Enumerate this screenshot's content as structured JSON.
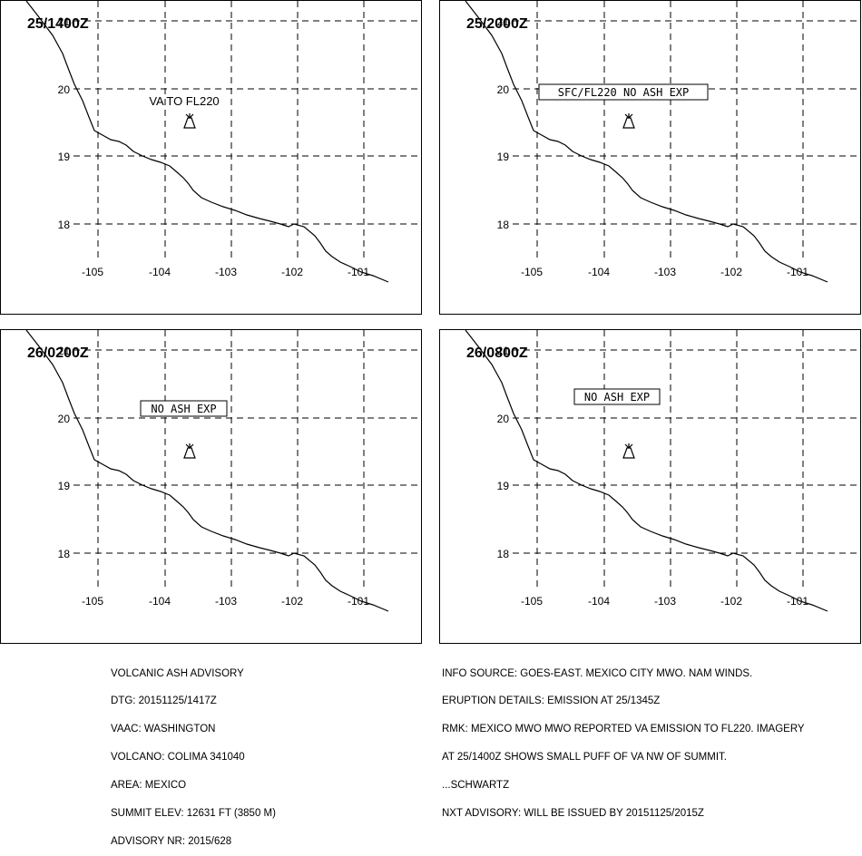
{
  "panels": [
    {
      "time": "25/1400Z",
      "annotation": {
        "text": "VA TO FL220",
        "boxed": false,
        "icon": "volcano-icon"
      }
    },
    {
      "time": "25/2000Z",
      "annotation": {
        "text": "SFC/FL220 NO ASH EXP",
        "boxed": true,
        "icon": "volcano-icon"
      }
    },
    {
      "time": "26/0200Z",
      "annotation": {
        "text": "NO ASH EXP",
        "boxed": true,
        "icon": "volcano-icon"
      }
    },
    {
      "time": "26/0800Z",
      "annotation": {
        "text": "NO ASH EXP",
        "boxed": true,
        "icon": "volcano-icon"
      }
    }
  ],
  "map": {
    "lat_labels": [
      "21",
      "20",
      "19",
      "18"
    ],
    "lon_labels": [
      "-105",
      "-104",
      "-103",
      "-102",
      "-101"
    ],
    "line_color": "#000000"
  },
  "advisory_left": [
    "VOLCANIC ASH ADVISORY",
    "DTG: 20151125/1417Z",
    "VAAC: WASHINGTON",
    "VOLCANO: COLIMA 341040",
    "AREA: MEXICO",
    "SUMMIT ELEV: 12631 FT (3850 M)",
    "ADVISORY NR: 2015/628"
  ],
  "advisory_right": [
    "INFO SOURCE: GOES-EAST. MEXICO CITY MWO. NAM WINDS.",
    "ERUPTION DETAILS: EMISSION AT 25/1345Z",
    "RMK: MEXICO MWO MWO REPORTED VA EMISSION TO FL220. IMAGERY",
    "AT 25/1400Z SHOWS SMALL PUFF OF VA NW OF SUMMIT.",
    "...SCHWARTZ",
    "NXT ADVISORY: WILL BE ISSUED BY 20151125/2015Z"
  ]
}
